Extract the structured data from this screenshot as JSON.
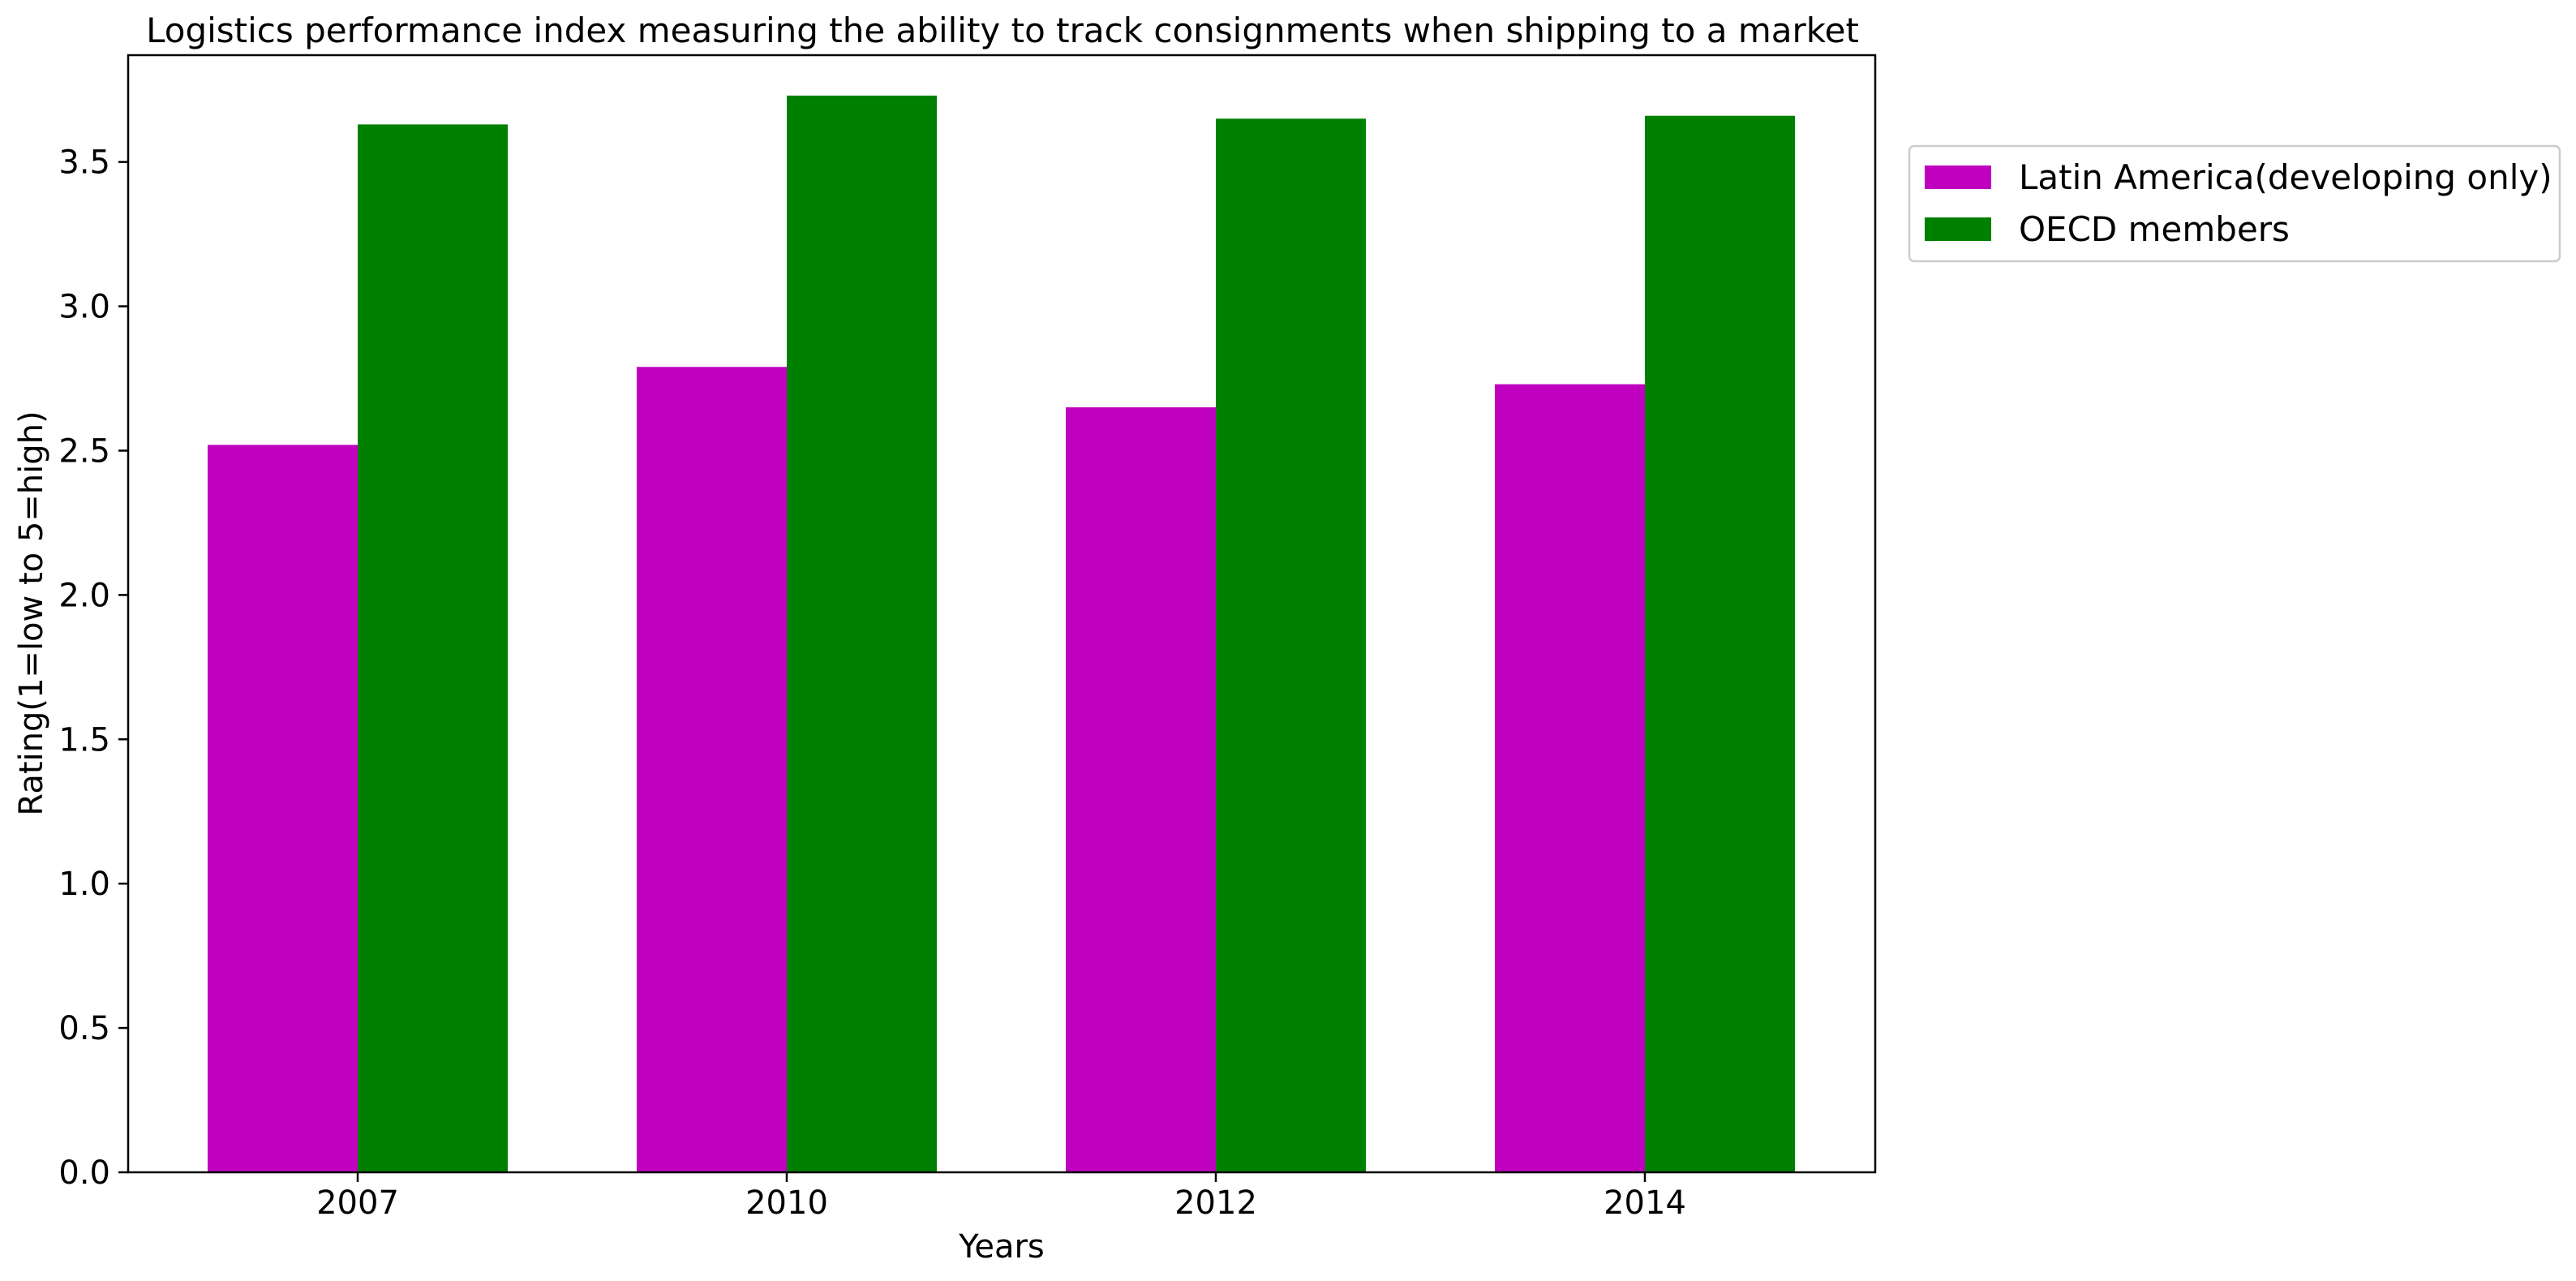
{
  "chart_data": {
    "type": "bar",
    "title": "Logistics performance index measuring the ability to track consignments when shipping to a market",
    "xlabel": "Years",
    "ylabel": "Rating(1=low to 5=high)",
    "categories": [
      "2007",
      "2010",
      "2012",
      "2014"
    ],
    "ylim": [
      0,
      3.87
    ],
    "yticks": [
      0.0,
      0.5,
      1.0,
      1.5,
      2.0,
      2.5,
      3.0,
      3.5
    ],
    "ytick_labels": [
      "0.0",
      "0.5",
      "1.0",
      "1.5",
      "2.0",
      "2.5",
      "3.0",
      "3.5"
    ],
    "grid": false,
    "legend_position": "outside-right-top",
    "series": [
      {
        "name": "Latin America(developing only)",
        "color": "#bf00bf",
        "values": [
          2.52,
          2.79,
          2.65,
          2.73
        ]
      },
      {
        "name": "OECD members",
        "color": "#008000",
        "values": [
          3.63,
          3.73,
          3.65,
          3.66
        ]
      }
    ]
  }
}
